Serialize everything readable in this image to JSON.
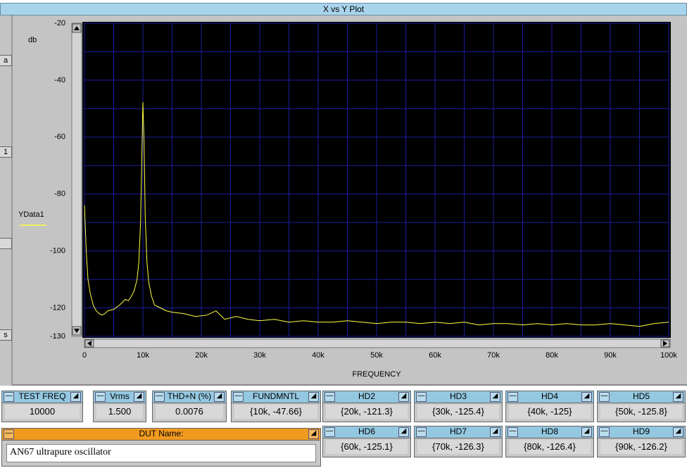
{
  "window_title": "X vs Y Plot",
  "left_fragments": [
    "a",
    "1",
    "s"
  ],
  "chart_data": {
    "type": "line",
    "y_label": "db",
    "x_label": "FREQUENCY",
    "xlim": [
      0,
      100000
    ],
    "xticks": [
      {
        "value": 0,
        "label": "0"
      },
      {
        "value": 10000,
        "label": "10k"
      },
      {
        "value": 20000,
        "label": "20k"
      },
      {
        "value": 30000,
        "label": "30k"
      },
      {
        "value": 40000,
        "label": "40k"
      },
      {
        "value": 50000,
        "label": "50k"
      },
      {
        "value": 60000,
        "label": "60k"
      },
      {
        "value": 70000,
        "label": "70k"
      },
      {
        "value": 80000,
        "label": "80k"
      },
      {
        "value": 90000,
        "label": "90k"
      },
      {
        "value": 100000,
        "label": "100k"
      }
    ],
    "xgrid_minor": [
      5000,
      15000,
      25000,
      35000,
      45000,
      55000,
      65000,
      75000,
      85000,
      95000
    ],
    "ylim": [
      -130,
      -20
    ],
    "yticks": [
      -20,
      -40,
      -60,
      -80,
      -100,
      -120,
      -130
    ],
    "ygrid_minor": [
      -30,
      -50,
      -70,
      -90,
      -110
    ],
    "grid": true,
    "legend": "left",
    "series": [
      {
        "name": "YData1",
        "color": "#ffff40",
        "x": [
          0,
          300,
          600,
          1000,
          1500,
          2000,
          2500,
          3000,
          3500,
          4000,
          5000,
          6000,
          7000,
          7500,
          8000,
          8500,
          9000,
          9300,
          9600,
          9800,
          10000,
          10200,
          10400,
          10700,
          11000,
          11500,
          12000,
          13000,
          14000,
          15000,
          17000,
          19000,
          21000,
          22500,
          24000,
          26000,
          28000,
          30000,
          32500,
          35000,
          37500,
          40000,
          42500,
          45000,
          47500,
          50000,
          52500,
          55000,
          57500,
          60000,
          62500,
          65000,
          67500,
          70000,
          72500,
          75000,
          77500,
          80000,
          82500,
          85000,
          87500,
          90000,
          92500,
          95000,
          97500,
          100000
        ],
        "values": [
          -84,
          -100,
          -110,
          -115,
          -119,
          -121,
          -122,
          -122.5,
          -122,
          -121,
          -120.5,
          -119,
          -117,
          -117.5,
          -116,
          -114,
          -110,
          -104,
          -90,
          -70,
          -47.7,
          -62,
          -88,
          -104,
          -111,
          -116,
          -119,
          -120,
          -121,
          -121.5,
          -122,
          -123,
          -122.5,
          -121,
          -124,
          -123,
          -124,
          -124.5,
          -124,
          -125,
          -124.5,
          -125,
          -125,
          -124.5,
          -125,
          -125.5,
          -125,
          -125,
          -125.5,
          -125,
          -125.5,
          -125,
          -126,
          -125.5,
          -125.5,
          -126,
          -125.5,
          -126,
          -125.5,
          -126,
          -126,
          -125.5,
          -126,
          -126.5,
          -125.5,
          -125
        ]
      }
    ]
  },
  "panels": [
    {
      "title": "TEST FREQ",
      "value": "10000"
    },
    {
      "title": "Vrms",
      "value": "1.500"
    },
    {
      "title": "THD+N (%)",
      "value": "0.0076"
    },
    {
      "title": "FUNDMNTL",
      "value": "{10k, -47.66}"
    },
    {
      "title": "HD2",
      "value": "{20k, -121.3}"
    },
    {
      "title": "HD3",
      "value": "{30k, -125.4}"
    },
    {
      "title": "HD4",
      "value": "{40k, -125}"
    },
    {
      "title": "HD5",
      "value": "{50k, -125.8}"
    },
    {
      "title": "HD6",
      "value": "{60k, -125.1}"
    },
    {
      "title": "HD7",
      "value": "{70k, -126.3}"
    },
    {
      "title": "HD8",
      "value": "{80k, -126.4}"
    },
    {
      "title": "HD9",
      "value": "{90k, -126.2}"
    }
  ],
  "dut": {
    "title": "DUT Name:",
    "value": "AN67 ultrapure oscillator"
  }
}
